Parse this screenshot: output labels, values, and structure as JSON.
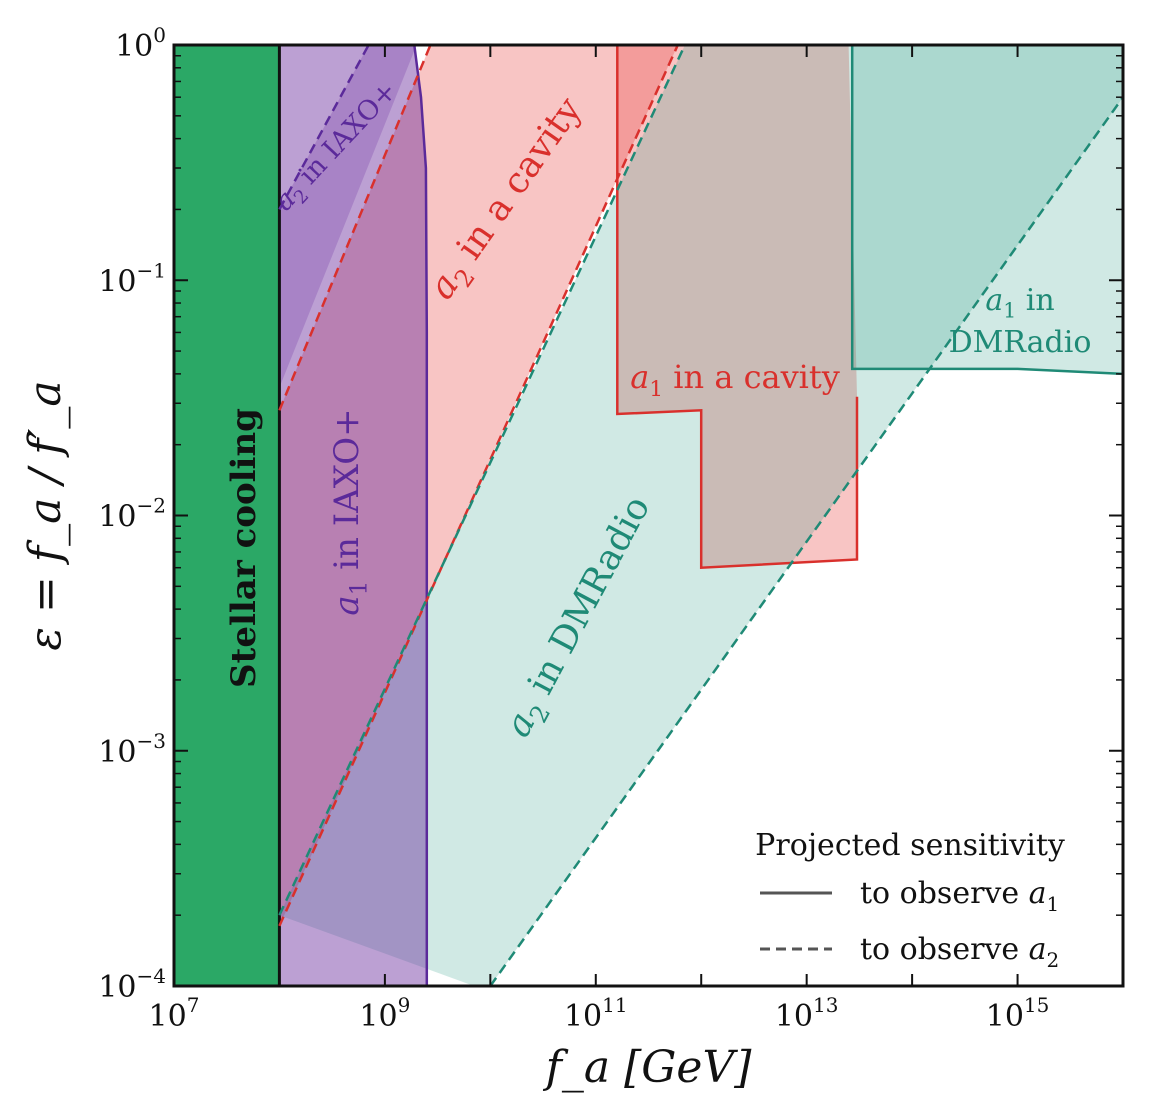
{
  "chart_data": {
    "type": "area",
    "title": "",
    "xlabel": "f_a [GeV]",
    "ylabel": "ε = f_a / f′_a",
    "xscale": "log",
    "yscale": "log",
    "xlim": [
      10000000.0,
      1e+16
    ],
    "ylim": [
      0.0001,
      1
    ],
    "grid": false,
    "x_ticks": [
      {
        "base": "10",
        "exp": "7",
        "value": 10000000.0
      },
      {
        "base": "10",
        "exp": "9",
        "value": 1000000000.0
      },
      {
        "base": "10",
        "exp": "11",
        "value": 100000000000.0
      },
      {
        "base": "10",
        "exp": "13",
        "value": 10000000000000.0
      },
      {
        "base": "10",
        "exp": "15",
        "value": 1000000000000000.0
      }
    ],
    "y_ticks": [
      {
        "base": "10",
        "exp": "−4",
        "value": 0.0001
      },
      {
        "base": "10",
        "exp": "−3",
        "value": 0.001
      },
      {
        "base": "10",
        "exp": "−2",
        "value": 0.01
      },
      {
        "base": "10",
        "exp": "−1",
        "value": 0.1
      },
      {
        "base": "10",
        "exp": "0",
        "value": 1
      }
    ],
    "regions": [
      {
        "id": "stellar-cooling",
        "label": "Stellar cooling",
        "color": "#2ba866",
        "fill_opacity": 1.0,
        "line": "solid",
        "points": [
          [
            10000000.0,
            0.0001
          ],
          [
            100000000.0,
            0.0001
          ],
          [
            100000000.0,
            1
          ],
          [
            10000000.0,
            1
          ]
        ]
      },
      {
        "id": "a1-iaxo",
        "label": "a1 in IAXO+",
        "color": "#6a2c9e",
        "fill_opacity": 0.45,
        "line": "solid",
        "points": [
          [
            100000000.0,
            0.0001
          ],
          [
            2500000000.0,
            0.0001
          ],
          [
            2500000000.0,
            0.06
          ],
          [
            2450000000.0,
            0.3
          ],
          [
            2200000000.0,
            0.6
          ],
          [
            1900000000.0,
            1
          ],
          [
            100000000.0,
            1
          ]
        ]
      },
      {
        "id": "a2-iaxo",
        "label": "a2 in IAXO+",
        "color": "#6a2c9e",
        "fill_opacity": 0.25,
        "line": "dashed",
        "points": [
          [
            100000000.0,
            0.2
          ],
          [
            700000000.0,
            1
          ],
          [
            2000000000.0,
            1
          ],
          [
            100000000.0,
            0.035
          ]
        ]
      },
      {
        "id": "a2-cavity",
        "label": "a2 in a cavity",
        "color": "#e8403a",
        "fill_opacity": 0.3,
        "line": "dashed",
        "points": [
          [
            100000000.0,
            0.028
          ],
          [
            2700000000.0,
            1
          ],
          [
            600000000000.0,
            1
          ],
          [
            100000000.0,
            0.00018
          ]
        ]
      },
      {
        "id": "a1-cavity",
        "label": "a1 in a cavity",
        "color": "#e8403a",
        "fill_opacity": 0.3,
        "line": "solid",
        "points": [
          [
            160000000000.0,
            0.027
          ],
          [
            160000000000.0,
            1
          ],
          [
            25000000000000.0,
            1
          ],
          [
            30000000000000.0,
            0.032
          ],
          [
            30000000000000.0,
            0.0065
          ],
          [
            1000000000000.0,
            0.006
          ],
          [
            1000000000000.0,
            0.028
          ]
        ]
      },
      {
        "id": "a2-dmradio",
        "label": "a2 in DMRadio",
        "color": "#2a9a86",
        "fill_opacity": 0.22,
        "line": "dashed",
        "points": [
          [
            100000000.0,
            0.0002
          ],
          [
            700000000000.0,
            1
          ],
          [
            1e+16,
            1
          ],
          [
            1e+16,
            0.6
          ],
          [
            10000000000.0,
            0.0001
          ],
          [
            7000000000.0,
            0.0001
          ]
        ]
      },
      {
        "id": "a1-dmradio",
        "label": "a1 in DMRadio",
        "color": "#2a9a86",
        "fill_opacity": 0.22,
        "line": "solid",
        "points": [
          [
            27000000000000.0,
            0.042
          ],
          [
            27000000000000.0,
            1
          ],
          [
            1e+16,
            1
          ],
          [
            1e+16,
            0.04
          ],
          [
            1000000000000000.0,
            0.042
          ]
        ]
      }
    ],
    "region_labels": [
      {
        "id": "stellar",
        "text": "Stellar cooling",
        "sub": ""
      },
      {
        "id": "a1-iaxo",
        "text": "a",
        "sub": "1",
        "rest": " in IAXO+"
      },
      {
        "id": "a2-iaxo",
        "text": "a",
        "sub": "2",
        "rest": " in IAXO+"
      },
      {
        "id": "a2-cavity",
        "text": "a",
        "sub": "2",
        "rest": " in a cavity"
      },
      {
        "id": "a1-cavity",
        "text": "a",
        "sub": "1",
        "rest": " in a cavity"
      },
      {
        "id": "a2-dmradio",
        "text": "a",
        "sub": "2",
        "rest": " in DMRadio"
      },
      {
        "id": "a1-dmradio-1",
        "text": "a",
        "sub": "1",
        "rest": " in"
      },
      {
        "id": "a1-dmradio-2",
        "text": "DMRadio",
        "sub": "",
        "rest": ""
      }
    ],
    "legend": {
      "title": "Projected sensitivity",
      "placement": "bottom-right",
      "entries": [
        {
          "line": "solid",
          "text": "to observe ",
          "var": "a",
          "sub": "1"
        },
        {
          "line": "dashed",
          "text": "to observe ",
          "var": "a",
          "sub": "2"
        }
      ]
    }
  }
}
